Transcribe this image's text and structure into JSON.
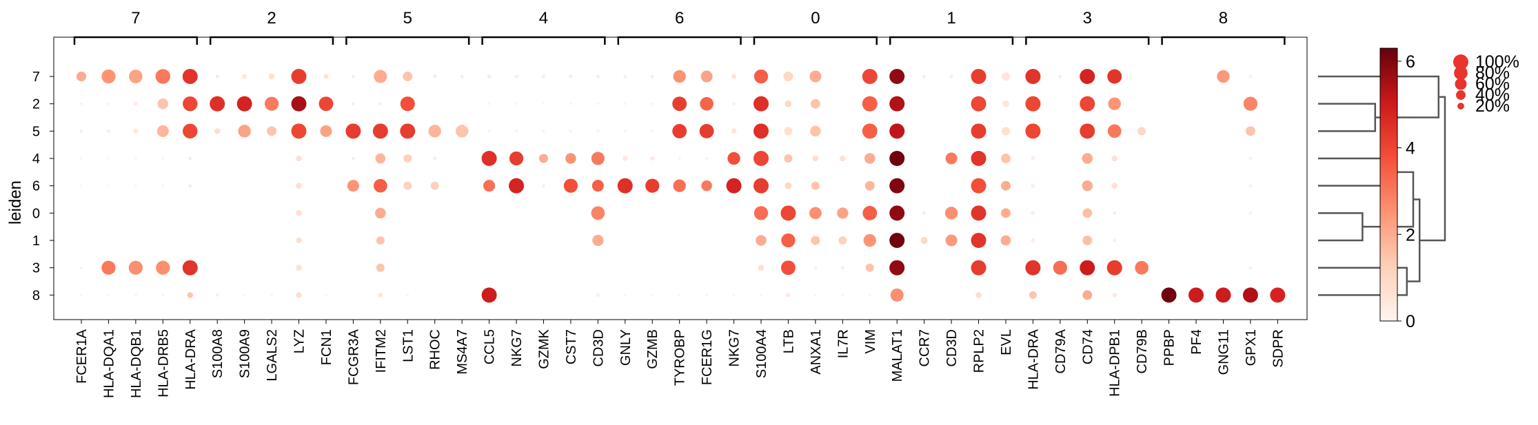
{
  "chart_data": {
    "type": "scatter",
    "subtype": "dotplot",
    "title": "",
    "ylabel": "leiden",
    "rows": [
      "7",
      "2",
      "5",
      "4",
      "6",
      "0",
      "1",
      "3",
      "8"
    ],
    "groups": [
      {
        "label": "7",
        "genes": [
          "FCER1A",
          "HLA-DQA1",
          "HLA-DQB1",
          "HLA-DRB5",
          "HLA-DRA"
        ]
      },
      {
        "label": "2",
        "genes": [
          "S100A8",
          "S100A9",
          "LGALS2",
          "LYZ",
          "FCN1"
        ]
      },
      {
        "label": "5",
        "genes": [
          "FCGR3A",
          "IFITM2",
          "LST1",
          "RHOC",
          "MS4A7"
        ]
      },
      {
        "label": "4",
        "genes": [
          "CCL5",
          "NKG7",
          "GZMK",
          "CST7",
          "CD3D"
        ]
      },
      {
        "label": "6",
        "genes": [
          "GNLY",
          "GZMB",
          "TYROBP",
          "FCER1G",
          "NKG7"
        ]
      },
      {
        "label": "0",
        "genes": [
          "S100A4",
          "LTB",
          "ANXA1",
          "IL7R",
          "VIM"
        ]
      },
      {
        "label": "1",
        "genes": [
          "MALAT1",
          "CCR7",
          "CD3D",
          "RPLP2",
          "EVL"
        ]
      },
      {
        "label": "3",
        "genes": [
          "HLA-DRA",
          "CD79A",
          "CD74",
          "HLA-DPB1",
          "CD79B"
        ]
      },
      {
        "label": "8",
        "genes": [
          "PPBP",
          "PF4",
          "GNG11",
          "GPX1",
          "SDPR"
        ]
      }
    ],
    "fraction_matrix": [
      [
        42,
        85,
        80,
        95,
        100,
        5,
        12,
        15,
        100,
        10,
        5,
        75,
        40,
        5,
        5,
        6,
        6,
        6,
        6,
        6,
        5,
        5,
        70,
        60,
        10,
        85,
        40,
        60,
        0,
        100,
        100,
        5,
        5,
        100,
        30,
        100,
        5,
        100,
        90,
        0,
        0,
        0,
        70,
        5,
        0
      ],
      [
        3,
        3,
        8,
        50,
        95,
        100,
        100,
        85,
        100,
        90,
        5,
        5,
        92,
        0,
        0,
        3,
        3,
        3,
        3,
        3,
        3,
        3,
        90,
        80,
        5,
        100,
        20,
        40,
        0,
        100,
        100,
        0,
        0,
        100,
        20,
        100,
        0,
        100,
        70,
        0,
        0,
        0,
        0,
        85,
        0
      ],
      [
        5,
        5,
        10,
        60,
        95,
        15,
        70,
        40,
        100,
        60,
        100,
        100,
        100,
        70,
        70,
        4,
        4,
        4,
        4,
        4,
        3,
        3,
        90,
        90,
        12,
        100,
        30,
        50,
        0,
        100,
        100,
        0,
        0,
        100,
        30,
        100,
        0,
        100,
        80,
        30,
        0,
        0,
        0,
        40,
        0
      ],
      [
        3,
        3,
        3,
        3,
        5,
        0,
        0,
        0,
        15,
        0,
        5,
        45,
        30,
        5,
        0,
        100,
        85,
        35,
        50,
        75,
        10,
        8,
        3,
        3,
        70,
        100,
        30,
        15,
        15,
        50,
        100,
        0,
        60,
        100,
        40,
        8,
        0,
        50,
        15,
        0,
        0,
        0,
        0,
        5,
        0
      ],
      [
        3,
        3,
        3,
        3,
        5,
        0,
        0,
        0,
        15,
        0,
        60,
        80,
        30,
        30,
        0,
        60,
        100,
        5,
        85,
        60,
        100,
        85,
        70,
        50,
        100,
        100,
        20,
        30,
        0,
        40,
        100,
        0,
        0,
        100,
        40,
        8,
        0,
        50,
        15,
        0,
        0,
        0,
        0,
        5,
        0
      ],
      [
        0,
        0,
        0,
        0,
        0,
        0,
        0,
        0,
        15,
        0,
        0,
        50,
        0,
        0,
        0,
        0,
        0,
        0,
        0,
        80,
        0,
        0,
        0,
        0,
        0,
        85,
        100,
        65,
        55,
        90,
        100,
        5,
        70,
        100,
        40,
        8,
        0,
        40,
        5,
        0,
        0,
        0,
        0,
        5,
        0
      ],
      [
        0,
        0,
        0,
        0,
        0,
        0,
        0,
        0,
        15,
        0,
        0,
        30,
        0,
        0,
        0,
        0,
        0,
        0,
        0,
        55,
        0,
        0,
        0,
        0,
        0,
        50,
        85,
        35,
        30,
        70,
        100,
        20,
        60,
        100,
        45,
        8,
        0,
        40,
        5,
        0,
        0,
        0,
        0,
        0,
        0
      ],
      [
        3,
        85,
        85,
        85,
        100,
        0,
        0,
        0,
        15,
        0,
        0,
        30,
        0,
        0,
        0,
        0,
        0,
        0,
        0,
        0,
        0,
        0,
        0,
        0,
        0,
        15,
        90,
        5,
        5,
        30,
        100,
        0,
        0,
        100,
        0,
        100,
        85,
        100,
        100,
        80,
        0,
        0,
        0,
        5,
        0
      ],
      [
        3,
        3,
        3,
        3,
        15,
        5,
        3,
        3,
        15,
        3,
        0,
        10,
        3,
        0,
        0,
        100,
        0,
        0,
        0,
        5,
        3,
        3,
        3,
        3,
        3,
        3,
        8,
        3,
        3,
        3,
        75,
        0,
        0,
        15,
        0,
        25,
        0,
        40,
        8,
        0,
        100,
        100,
        100,
        100,
        100
      ]
    ],
    "mean_matrix": [
      [
        2.0,
        2.5,
        2.2,
        3.0,
        4.4,
        0.5,
        0.5,
        0.7,
        4.2,
        0.6,
        0.3,
        2.0,
        1.5,
        0.4,
        0.3,
        0.4,
        0.3,
        0.3,
        0.3,
        0.3,
        0.3,
        0.3,
        2.5,
        2.2,
        0.6,
        3.5,
        1.0,
        2.0,
        0.1,
        4.0,
        5.8,
        0.3,
        0.3,
        4.2,
        0.5,
        4.4,
        0.3,
        4.8,
        4.4,
        0.1,
        0.1,
        0.1,
        2.4,
        0.2,
        0.1
      ],
      [
        0.2,
        0.2,
        0.3,
        1.5,
        4.0,
        4.5,
        4.8,
        3.0,
        5.5,
        4.0,
        0.3,
        0.3,
        3.8,
        0.1,
        0.1,
        0.1,
        0.1,
        0.1,
        0.1,
        0.1,
        0.1,
        0.1,
        4.2,
        3.4,
        0.3,
        4.5,
        1.0,
        1.5,
        0.1,
        3.5,
        5.4,
        0.1,
        0.1,
        4.0,
        0.5,
        4.0,
        0.1,
        4.0,
        2.5,
        0.1,
        0.1,
        0.1,
        0.1,
        2.8,
        0.1
      ],
      [
        0.3,
        0.3,
        0.5,
        1.8,
        4.0,
        0.8,
        2.2,
        1.5,
        4.0,
        2.2,
        4.2,
        4.2,
        4.2,
        1.8,
        1.5,
        0.2,
        0.2,
        0.2,
        0.2,
        0.2,
        0.2,
        0.2,
        4.2,
        4.2,
        0.5,
        4.5,
        0.8,
        1.5,
        0.1,
        3.5,
        5.2,
        0.1,
        0.1,
        4.2,
        0.7,
        4.0,
        0.1,
        4.2,
        3.0,
        1.0,
        0.1,
        0.1,
        0.1,
        1.5,
        0.1
      ],
      [
        0.1,
        0.1,
        0.1,
        0.1,
        0.3,
        0.1,
        0.1,
        0.1,
        0.7,
        0.1,
        0.3,
        1.8,
        1.2,
        0.3,
        0.1,
        4.5,
        4.2,
        2.0,
        2.5,
        3.0,
        0.5,
        0.4,
        0.2,
        0.2,
        3.8,
        4.0,
        1.5,
        0.8,
        0.7,
        2.0,
        6.2,
        0.1,
        3.0,
        4.4,
        1.5,
        0.3,
        0.1,
        2.0,
        0.7,
        0.1,
        0.1,
        0.1,
        0.1,
        0.2,
        0.1
      ],
      [
        0.1,
        0.1,
        0.1,
        0.1,
        0.3,
        0.1,
        0.1,
        0.1,
        0.7,
        0.1,
        2.5,
        3.5,
        1.2,
        1.2,
        0.1,
        3.2,
        4.8,
        0.3,
        3.8,
        3.5,
        4.5,
        4.2,
        3.2,
        3.0,
        4.8,
        4.2,
        1.0,
        1.5,
        0.1,
        1.8,
        6.0,
        0.1,
        0.1,
        3.8,
        2.0,
        0.3,
        0.1,
        2.0,
        0.7,
        0.1,
        0.1,
        0.1,
        0.1,
        0.2,
        0.1
      ],
      [
        0.1,
        0.1,
        0.1,
        0.1,
        0.1,
        0.1,
        0.1,
        0.1,
        0.7,
        0.1,
        0.1,
        2.0,
        0.1,
        0.1,
        0.1,
        0.1,
        0.1,
        0.1,
        0.1,
        2.8,
        0.1,
        0.1,
        0.1,
        0.1,
        0.1,
        3.2,
        4.0,
        2.6,
        2.2,
        3.5,
        5.8,
        0.3,
        2.6,
        4.4,
        2.0,
        0.3,
        0.1,
        1.6,
        0.3,
        0.1,
        0.1,
        0.1,
        0.1,
        0.2,
        0.1
      ],
      [
        0.1,
        0.1,
        0.1,
        0.1,
        0.1,
        0.1,
        0.1,
        0.1,
        0.7,
        0.1,
        0.1,
        1.5,
        0.1,
        0.1,
        0.1,
        0.1,
        0.1,
        0.1,
        0.1,
        2.0,
        0.1,
        0.1,
        0.1,
        0.1,
        0.1,
        2.0,
        3.5,
        1.5,
        1.2,
        2.5,
        6.2,
        1.0,
        2.4,
        4.4,
        2.0,
        0.3,
        0.1,
        1.6,
        0.3,
        0.1,
        0.1,
        0.1,
        0.1,
        0.1,
        0.1
      ],
      [
        0.2,
        3.0,
        2.6,
        2.6,
        4.4,
        0.1,
        0.1,
        0.1,
        0.7,
        0.1,
        0.1,
        1.5,
        0.1,
        0.1,
        0.1,
        0.1,
        0.1,
        0.1,
        0.1,
        0.1,
        0.1,
        0.1,
        0.1,
        0.1,
        0.1,
        0.8,
        3.8,
        0.3,
        0.3,
        1.5,
        5.8,
        0.1,
        0.1,
        4.2,
        0.1,
        4.4,
        3.2,
        5.0,
        4.2,
        3.0,
        0.1,
        0.1,
        0.1,
        0.2,
        0.1
      ],
      [
        0.1,
        0.1,
        0.1,
        0.1,
        1.5,
        0.3,
        0.1,
        0.1,
        0.8,
        0.1,
        0.1,
        0.5,
        0.1,
        0.1,
        0.1,
        5.0,
        0.1,
        0.1,
        0.1,
        0.3,
        0.1,
        0.1,
        0.1,
        0.1,
        0.1,
        0.1,
        0.5,
        0.1,
        0.1,
        0.1,
        2.6,
        0.1,
        0.1,
        0.8,
        0.1,
        1.5,
        0.1,
        2.0,
        0.5,
        0.1,
        6.2,
        5.0,
        5.0,
        5.4,
        4.8
      ]
    ],
    "colorbar": {
      "ticks": [
        "0",
        "2",
        "4",
        "6"
      ],
      "range": [
        0,
        6.3
      ],
      "cmap": [
        "#fff5f0",
        "#fdd0b9",
        "#fc9373",
        "#f44f39",
        "#cd191b",
        "#67000d"
      ]
    },
    "size_legend": {
      "labels": [
        "100%",
        "80%",
        "60%",
        "40%",
        "20%"
      ],
      "values": [
        100,
        80,
        60,
        40,
        20
      ]
    },
    "dendrogram": {
      "leaves": [
        "7",
        "2",
        "5",
        "4",
        "6",
        "0",
        "1",
        "3",
        "8"
      ],
      "merges": [
        [
          1,
          2,
          0.45
        ],
        [
          0,
          9,
          0.95
        ],
        [
          3,
          4,
          0.55
        ],
        [
          5,
          6,
          0.35
        ],
        [
          7,
          8,
          0.7
        ],
        [
          11,
          12,
          0.75
        ],
        [
          13,
          14,
          0.8
        ],
        [
          10,
          15,
          1.0
        ]
      ]
    }
  }
}
